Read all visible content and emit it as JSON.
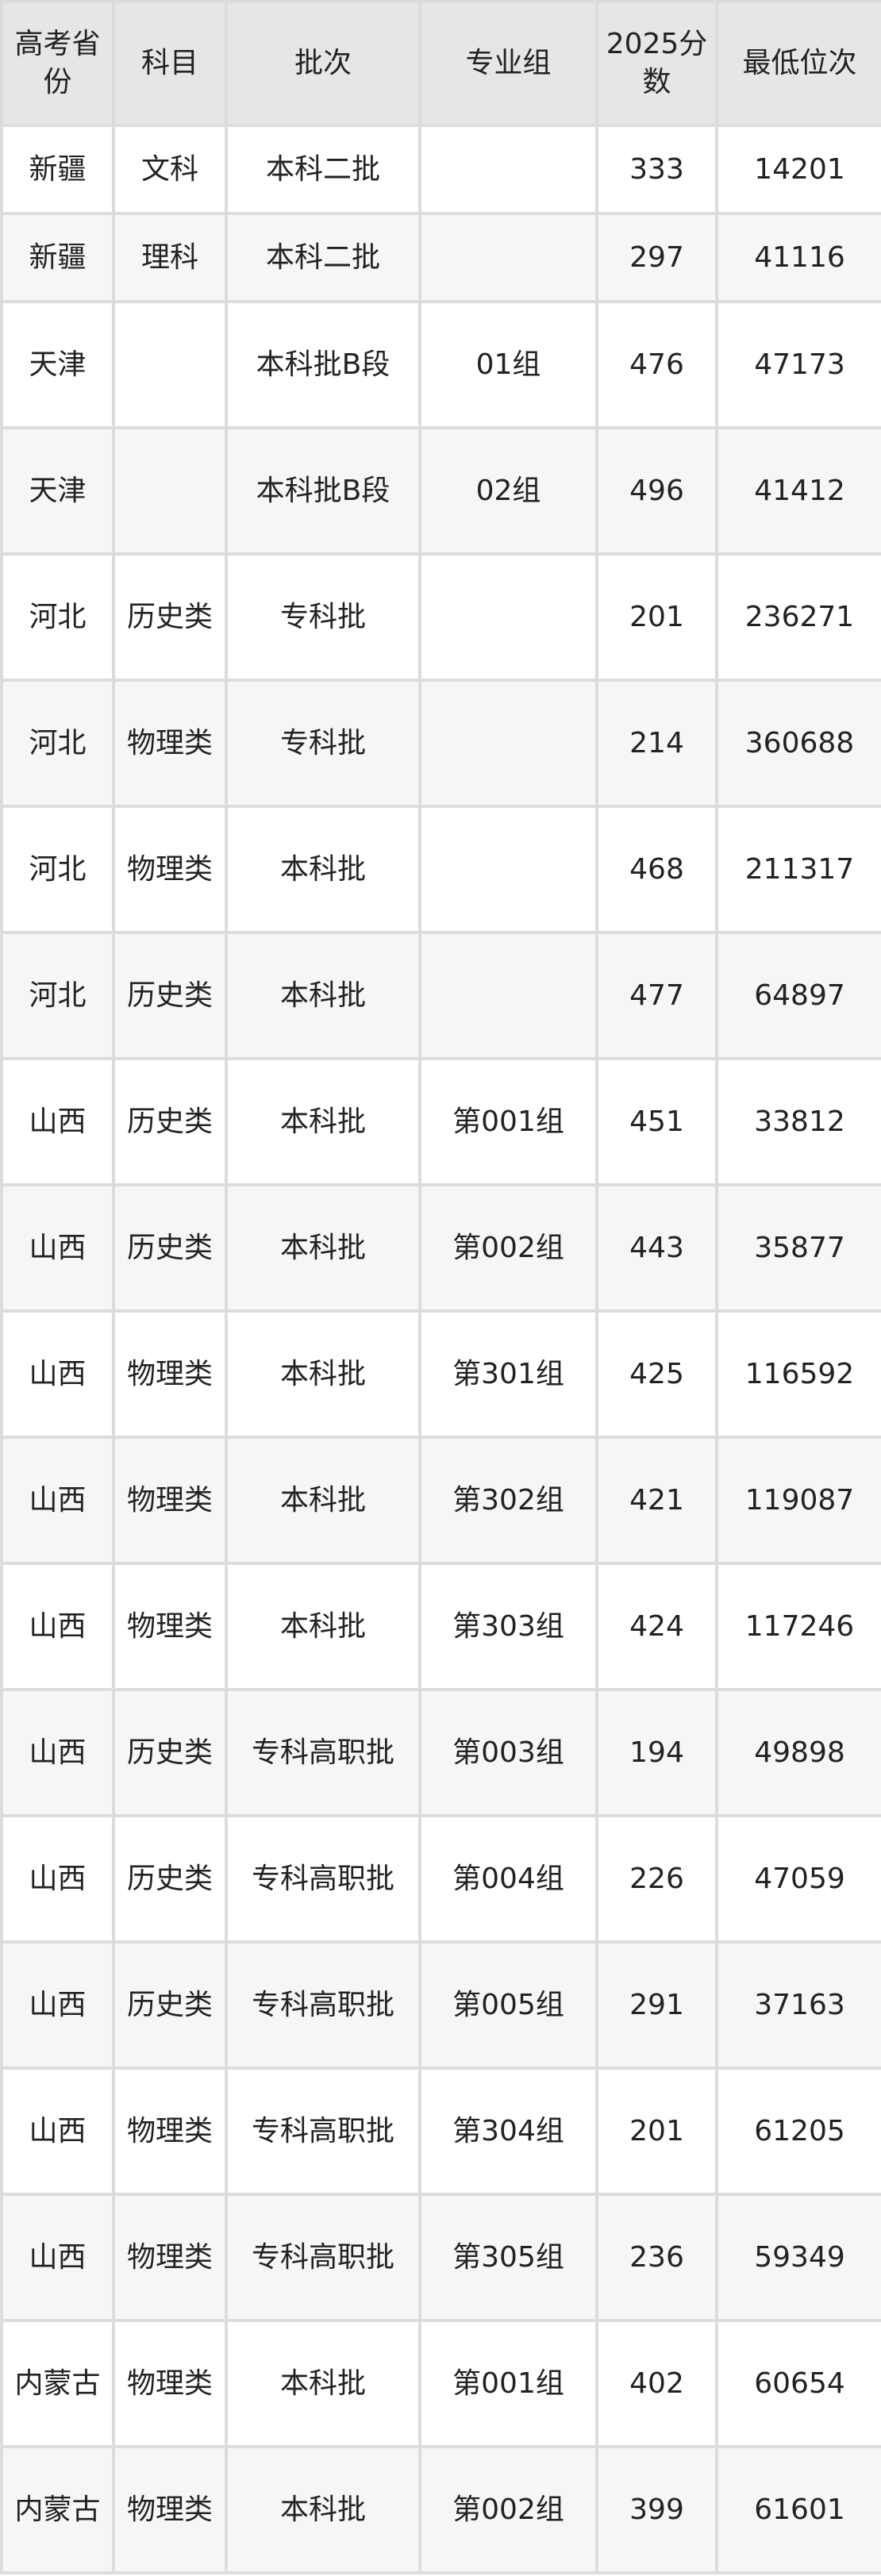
{
  "headers": [
    "高考省份",
    "科目",
    "批次",
    "专业组",
    "2025分数",
    "最低位次"
  ],
  "rows": [
    [
      "新疆",
      "文科",
      "本科二批",
      "",
      "333",
      "14201"
    ],
    [
      "新疆",
      "理科",
      "本科二批",
      "",
      "297",
      "41116"
    ],
    [
      "天津",
      "",
      "本科批B段",
      "01组",
      "476",
      "47173"
    ],
    [
      "天津",
      "",
      "本科批B段",
      "02组",
      "496",
      "41412"
    ],
    [
      "河北",
      "历史类",
      "专科批",
      "",
      "201",
      "236271"
    ],
    [
      "河北",
      "物理类",
      "专科批",
      "",
      "214",
      "360688"
    ],
    [
      "河北",
      "物理类",
      "本科批",
      "",
      "468",
      "211317"
    ],
    [
      "河北",
      "历史类",
      "本科批",
      "",
      "477",
      "64897"
    ],
    [
      "山西",
      "历史类",
      "本科批",
      "第001组",
      "451",
      "33812"
    ],
    [
      "山西",
      "历史类",
      "本科批",
      "第002组",
      "443",
      "35877"
    ],
    [
      "山西",
      "物理类",
      "本科批",
      "第301组",
      "425",
      "116592"
    ],
    [
      "山西",
      "物理类",
      "本科批",
      "第302组",
      "421",
      "119087"
    ],
    [
      "山西",
      "物理类",
      "本科批",
      "第303组",
      "424",
      "117246"
    ],
    [
      "山西",
      "历史类",
      "专科高职批",
      "第003组",
      "194",
      "49898"
    ],
    [
      "山西",
      "历史类",
      "专科高职批",
      "第004组",
      "226",
      "47059"
    ],
    [
      "山西",
      "历史类",
      "专科高职批",
      "第005组",
      "291",
      "37163"
    ],
    [
      "山西",
      "物理类",
      "专科高职批",
      "第304组",
      "201",
      "61205"
    ],
    [
      "山西",
      "物理类",
      "专科高职批",
      "第305组",
      "236",
      "59349"
    ],
    [
      "内蒙古",
      "物理类",
      "本科批",
      "第001组",
      "402",
      "60654"
    ],
    [
      "内蒙古",
      "物理类",
      "本科批",
      "第002组",
      "399",
      "61601"
    ]
  ]
}
